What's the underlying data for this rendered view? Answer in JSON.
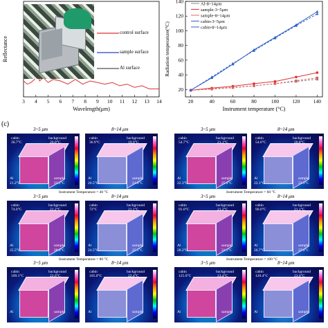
{
  "panel_c_label": "(c)",
  "chart_data": [
    {
      "type": "line",
      "xlabel": "Wavelength(μm)",
      "ylabel": "Reflectance",
      "xlim": [
        3,
        14
      ],
      "x_ticks": [
        "3",
        "4",
        "5",
        "6",
        "7",
        "8",
        "9",
        "10",
        "11",
        "12",
        "13",
        "14"
      ],
      "series": [
        {
          "color": "#e03030",
          "x": [
            3,
            3.3,
            3.6,
            3.9,
            4.1,
            4.3,
            4.6,
            5.0,
            5.4,
            6.0,
            6.6,
            7.2,
            7.8,
            8.4,
            9.0,
            9.6,
            10.2,
            10.8,
            11.4,
            12.0,
            12.6,
            13.2,
            14
          ],
          "y": [
            0.1,
            0.08,
            0.09,
            0.11,
            0.16,
            0.1,
            0.12,
            0.09,
            0.11,
            0.1,
            0.08,
            0.11,
            0.08,
            0.1,
            0.09,
            0.08,
            0.09,
            0.07,
            0.08,
            0.06,
            0.07,
            0.05,
            0.05
          ]
        }
      ],
      "inset_labels": [
        "control surface",
        "sample surface",
        "Al surface"
      ]
    },
    {
      "type": "line",
      "xlabel": "Instrument temperature (°C)",
      "ylabel": "Radiation temperature(°C)",
      "xlim": [
        20,
        140
      ],
      "ylim": [
        10,
        140
      ],
      "x_ticks": [
        "20",
        "40",
        "60",
        "80",
        "100",
        "120",
        "140"
      ],
      "y_ticks": [
        "20",
        "40",
        "60",
        "80",
        "100",
        "120",
        "140"
      ],
      "legend": [
        "Al-8~14μm",
        "sample-3~5μm",
        "sample-8~14μm",
        "cabin-3~5μm",
        "cabin-8~14μm"
      ],
      "legend_position": "top-left",
      "series": [
        {
          "name": "Al-8~14μm",
          "x": [
            20,
            40,
            60,
            80,
            100,
            120,
            140
          ],
          "y": [
            19,
            21,
            23,
            25,
            28,
            31,
            34
          ],
          "color": "#888888"
        },
        {
          "name": "sample-3~5μm",
          "x": [
            20,
            40,
            60,
            80,
            100,
            120,
            140
          ],
          "y": [
            19,
            22,
            24.5,
            28,
            31,
            37,
            43
          ],
          "color": "#e03030"
        },
        {
          "name": "sample-8~14μm",
          "x": [
            20,
            40,
            60,
            80,
            100,
            120,
            140
          ],
          "y": [
            19,
            20.5,
            22.5,
            25,
            28,
            32,
            36
          ],
          "color": "#e06060"
        },
        {
          "name": "cabin-3~5μm",
          "x": [
            20,
            40,
            60,
            80,
            100,
            120,
            140
          ],
          "y": [
            19,
            36,
            54.5,
            74,
            91,
            108,
            126
          ],
          "color": "#2a5fc8"
        },
        {
          "name": "cabin-8~14μm",
          "x": [
            20,
            40,
            60,
            80,
            100,
            120,
            140
          ],
          "y": [
            19,
            37,
            55.5,
            73,
            90,
            107,
            123
          ],
          "color": "#2a5fc8"
        }
      ]
    }
  ],
  "thermal_grid": {
    "blocks": [
      {
        "caption": "Instrument Temperature = 40 °C",
        "images": [
          {
            "band": "3~5 μm",
            "cabin": "cabin",
            "cabin_t": "36.7°C",
            "bg": "background",
            "bg_t": "20.0°C",
            "al": "Al",
            "al_t": "21.2°C",
            "sample": "sample",
            "sample_t": "22.2°C"
          },
          {
            "band": "8~14 μm",
            "cabin": "cabin",
            "cabin_t": "36.9°C",
            "bg": "background",
            "bg_t": "19.9°C",
            "al": "Al",
            "al_t": "20.5°C",
            "sample": "sample",
            "sample_t": "21.8°C"
          }
        ]
      },
      {
        "caption": "Instrument Temperature = 60 °C",
        "images": [
          {
            "band": "3~5 μm",
            "cabin": "cabin",
            "cabin_t": "54.7°C",
            "bg": "background",
            "bg_t": "21.1°C",
            "al": "Al",
            "al_t": "22.3°C",
            "sample": "sample",
            "sample_t": "25.4°C"
          },
          {
            "band": "8~14 μm",
            "cabin": "cabin",
            "cabin_t": "54.6°C",
            "bg": "background",
            "bg_t": "20.8°C",
            "al": "Al",
            "al_t": "22.1°C",
            "sample": "sample",
            "sample_t": "23.9°C"
          }
        ]
      },
      {
        "caption": "Instrument Temperature = 80 °C",
        "images": [
          {
            "band": "3~5 μm",
            "cabin": "cabin",
            "cabin_t": "74.0°C",
            "bg": "background",
            "bg_t": "21.2°C",
            "al": "Al",
            "al_t": "25.5°C",
            "sample": "sample",
            "sample_t": "28.8°C"
          },
          {
            "band": "8~14 μm",
            "cabin": "cabin",
            "cabin_t": "72°C",
            "bg": "background",
            "bg_t": "21.1°C",
            "al": "Al",
            "al_t": "24.5°C",
            "sample": "sample",
            "sample_t": "25.5°C"
          }
        ]
      },
      {
        "caption": "Instrument Temperature = 100 °C",
        "images": [
          {
            "band": "3~5 μm",
            "cabin": "cabin",
            "cabin_t": "91.0°C",
            "bg": "background",
            "bg_t": "21.2°C",
            "al": "Al",
            "al_t": "28.2°C",
            "sample": "sample",
            "sample_t": "31.1°C"
          },
          {
            "band": "8~14 μm",
            "cabin": "cabin",
            "cabin_t": "90.0°C",
            "bg": "background",
            "bg_t": "21.1°C",
            "al": "Al",
            "al_t": "26.7°C",
            "sample": "sample",
            "sample_t": "27.4°C"
          }
        ]
      },
      {
        "caption": "",
        "images": [
          {
            "band": "3~5 μm",
            "cabin": "cabin",
            "cabin_t": "109.1°C",
            "bg": "background",
            "bg_t": "22.6°C",
            "al": "Al",
            "al_t": "",
            "sample": "sample",
            "sample_t": ""
          },
          {
            "band": "8~14 μm",
            "cabin": "cabin",
            "cabin_t": "105.0°C",
            "bg": "background",
            "bg_t": "22.4°C",
            "al": "Al",
            "al_t": "",
            "sample": "sample",
            "sample_t": ""
          }
        ]
      },
      {
        "caption": "",
        "images": [
          {
            "band": "3~5 μm",
            "cabin": "cabin",
            "cabin_t": "125.0°C",
            "bg": "background",
            "bg_t": "23.4°C",
            "al": "Al",
            "al_t": "",
            "sample": "sample",
            "sample_t": ""
          },
          {
            "band": "8~14 μm",
            "cabin": "cabin",
            "cabin_t": "120.4°C",
            "bg": "background",
            "bg_t": "23.0°C",
            "al": "Al",
            "al_t": "",
            "sample": "sample",
            "sample_t": ""
          }
        ]
      }
    ]
  }
}
